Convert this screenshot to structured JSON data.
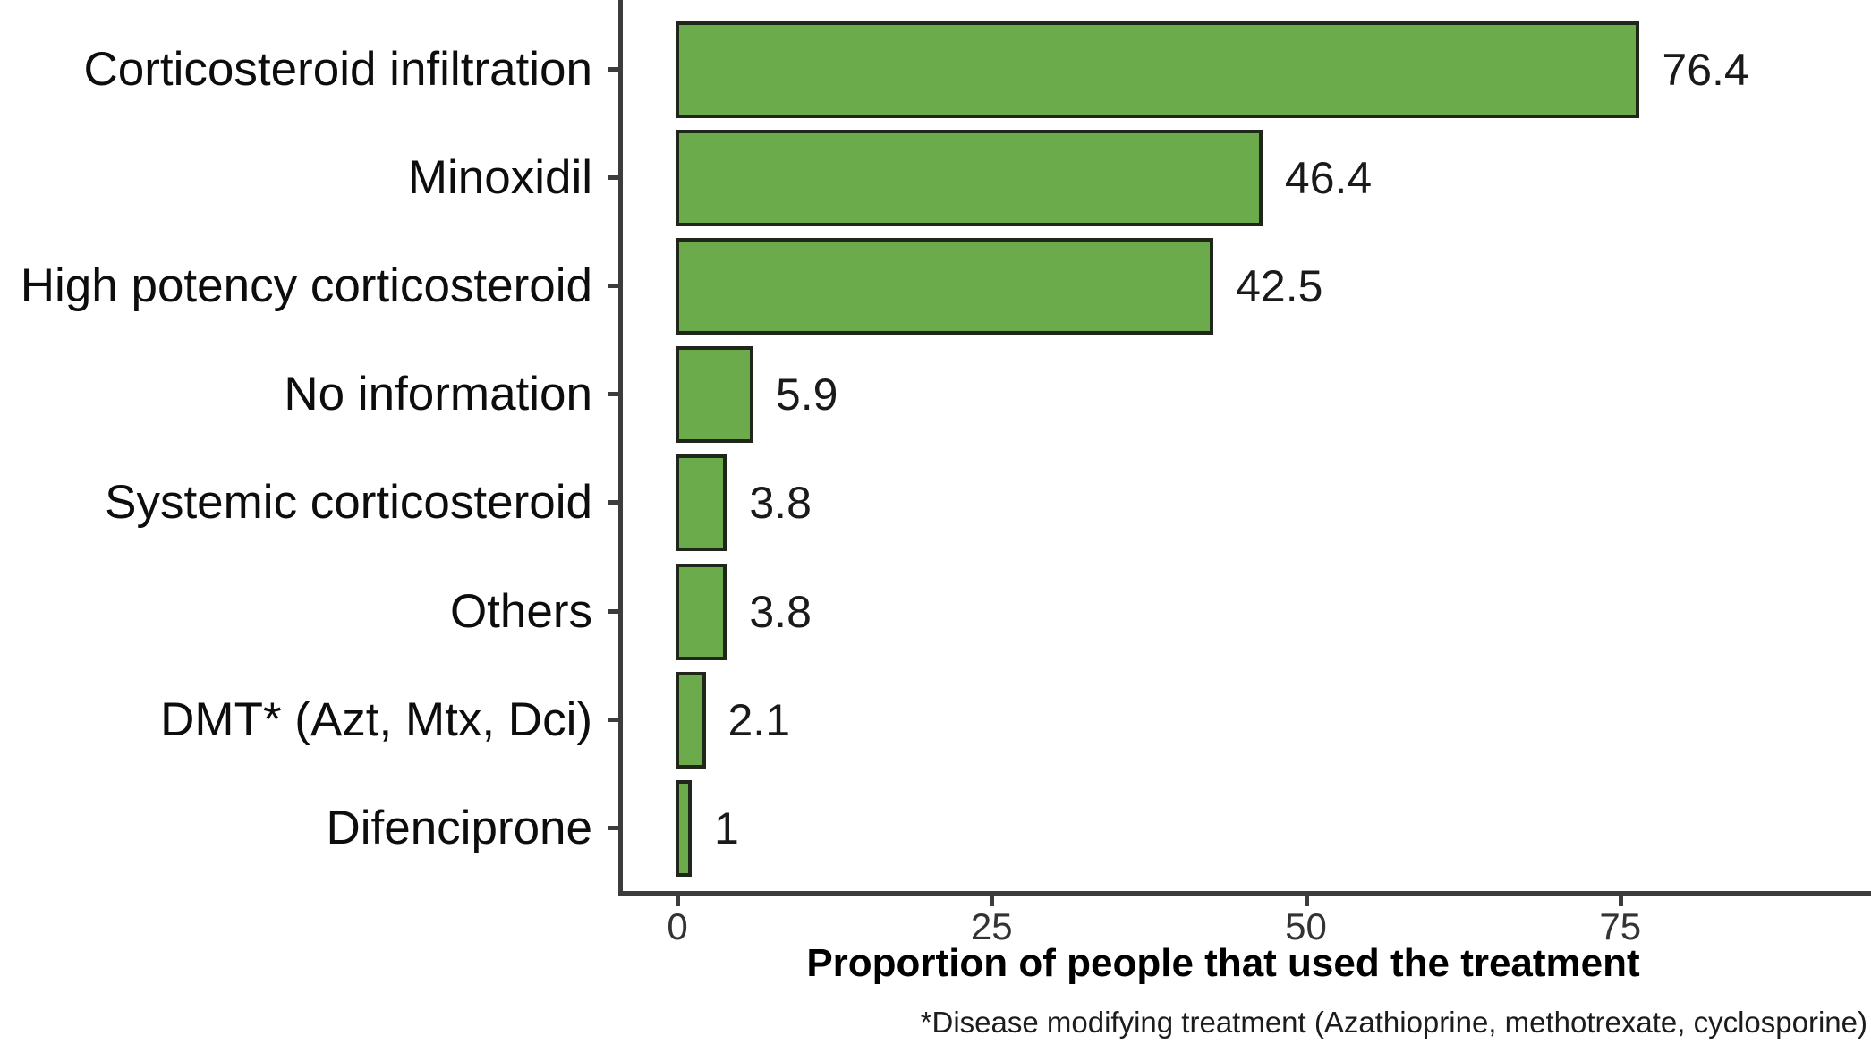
{
  "figure": {
    "background": "#ffffff"
  },
  "chart_data": {
    "type": "bar",
    "orientation": "horizontal",
    "title": "",
    "xlabel": "Proportion of people that used the treatment",
    "ylabel": "",
    "footnote": "*Disease modifying treatment (Azathioprine, methotrexate, cyclosporine)",
    "categories": [
      "Corticosteroid infiltration",
      "Minoxidil",
      "High potency corticosteroid",
      "No information",
      "Systemic corticosteroid",
      "Others",
      "DMT* (Azt, Mtx, Dci)",
      "Difenciprone"
    ],
    "values": [
      76.4,
      46.4,
      42.5,
      5.9,
      3.8,
      3.8,
      2.1,
      1
    ],
    "value_labels": [
      "76.4",
      "46.4",
      "42.5",
      "5.9",
      "3.8",
      "3.8",
      "2.1",
      "1"
    ],
    "x_ticks": [
      "0",
      "25",
      "50",
      "75"
    ],
    "x_tick_values": [
      0,
      25,
      50,
      75
    ],
    "xlim": [
      0,
      95
    ],
    "grid": false,
    "legend": false,
    "bar_color": "#6cab4b",
    "bar_border_color": "#20261a",
    "axis_color": "#3c3c3c"
  }
}
